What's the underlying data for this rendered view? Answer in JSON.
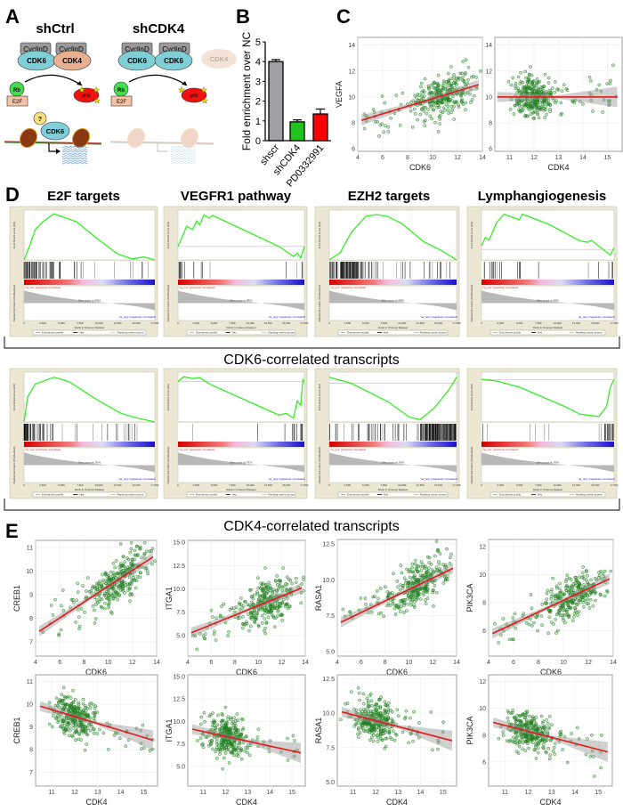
{
  "panel_labels": {
    "A": "A",
    "B": "B",
    "C": "C",
    "D": "D",
    "E": "E"
  },
  "diagram_a": {
    "left_title": "shCtrl",
    "right_title": "shCDK4",
    "cyclin": "CyclinD",
    "cdk6": "CDK6",
    "cdk4": "CDK4",
    "rb": "Rb",
    "prb": "pRb",
    "e2f": "E2F",
    "unknown": "?"
  },
  "gsea_titles": [
    "E2F targets",
    "VEGFR1 pathway",
    "EZH2 targets",
    "Lymphangiogenesis"
  ],
  "section_titles": {
    "cdk6": "CDK6-correlated transcripts",
    "cdk4": "CDK4-correlated transcripts"
  },
  "gsea_common": {
    "es_label": "Enrichment score (ES)",
    "metric_label": "Ranked list metric (PreRanked)",
    "xlabel": "Rank in Ordered Dataset",
    "pos_label": "'na_pos' (positively correlated)",
    "neg_label": "'na_neg' (negatively correlated)",
    "legend": [
      "Enrichment profile",
      "Hits",
      "Ranking metric scores"
    ],
    "xticks": [
      0,
      2500,
      5000,
      7500,
      10000,
      12500,
      15000,
      17500
    ],
    "colors": {
      "profile": "#33ee22",
      "hits": "#000000",
      "pos": "#e8141e",
      "neg": "#1a10c8"
    }
  },
  "chart_data": [
    {
      "id": "B",
      "type": "bar",
      "categories": [
        "shscr",
        "shCDK4",
        "PD0332991"
      ],
      "values": [
        4.0,
        0.95,
        1.35
      ],
      "errors": [
        0.1,
        0.1,
        0.25
      ],
      "colors": [
        "#a0a0a4",
        "#1fc41f",
        "#ff0000"
      ],
      "ylabel": "Fold enrichment over NC",
      "ylim": [
        0,
        5
      ],
      "yticks": [
        0,
        1,
        2,
        3,
        4,
        5
      ]
    },
    {
      "id": "C1",
      "type": "scatter",
      "xlabel": "CDK6",
      "ylabel": "VEGFA",
      "xlim": [
        4,
        14
      ],
      "ylim": [
        5.8,
        14.6
      ],
      "xticks": [
        4,
        6,
        8,
        10,
        12,
        14
      ],
      "yticks": [
        6,
        8,
        10,
        12,
        14
      ],
      "fit": [
        [
          4.3,
          8.2
        ],
        [
          13.7,
          10.95
        ]
      ],
      "grid": true
    },
    {
      "id": "C2",
      "type": "scatter",
      "xlabel": "CDK4",
      "ylabel": "",
      "xlim": [
        10.4,
        15.6
      ],
      "ylim": [
        5.8,
        14.6
      ],
      "xticks": [
        11,
        12,
        13,
        14,
        15
      ],
      "yticks": [
        6,
        8,
        10,
        12,
        14
      ],
      "fit": [
        [
          10.5,
          10.0
        ],
        [
          15.4,
          10.0
        ]
      ],
      "grid": true
    },
    {
      "id": "E1",
      "type": "scatter",
      "xlabel": "CDK6",
      "ylabel": "CREB1",
      "xlim": [
        4,
        14
      ],
      "ylim": [
        6.4,
        11.3
      ],
      "xticks": [
        4,
        6,
        8,
        10,
        12,
        14
      ],
      "yticks": [
        7,
        8,
        9,
        10,
        11
      ],
      "fit": [
        [
          4.3,
          7.45
        ],
        [
          13.7,
          10.6
        ]
      ],
      "grid": true
    },
    {
      "id": "E2",
      "type": "scatter",
      "xlabel": "CDK6",
      "ylabel": "ITGA1",
      "xlim": [
        4,
        14
      ],
      "ylim": [
        2.8,
        15.2
      ],
      "xticks": [
        4,
        6,
        8,
        10,
        12,
        14
      ],
      "yticks": [
        "5.0",
        "7.5",
        "10.0",
        "12.5",
        "15.0"
      ],
      "fit": [
        [
          4.3,
          5.3
        ],
        [
          13.7,
          10.1
        ]
      ],
      "grid": true
    },
    {
      "id": "E3",
      "type": "scatter",
      "xlabel": "CDK6",
      "ylabel": "RASA1",
      "xlim": [
        4,
        14
      ],
      "ylim": [
        4.7,
        12.8
      ],
      "xticks": [
        4,
        6,
        8,
        10,
        12,
        14
      ],
      "yticks": [
        "5.0",
        "7.5",
        "10.0",
        "12.5"
      ],
      "fit": [
        [
          4.3,
          7.05
        ],
        [
          13.7,
          10.8
        ]
      ],
      "grid": true
    },
    {
      "id": "E4",
      "type": "scatter",
      "xlabel": "CDK6",
      "ylabel": "PIK3CA",
      "xlim": [
        4,
        14
      ],
      "ylim": [
        4.2,
        12.5
      ],
      "xticks": [
        4,
        6,
        8,
        10,
        12,
        14
      ],
      "yticks": [
        6,
        8,
        10,
        12
      ],
      "fit": [
        [
          4.3,
          5.8
        ],
        [
          13.7,
          9.7
        ]
      ],
      "grid": true
    },
    {
      "id": "E5",
      "type": "scatter",
      "xlabel": "CDK4",
      "ylabel": "CREB1",
      "xlim": [
        10.3,
        15.6
      ],
      "ylim": [
        6.4,
        11.3
      ],
      "xticks": [
        11,
        12,
        13,
        14,
        15
      ],
      "yticks": [
        7,
        8,
        9,
        10,
        11
      ],
      "fit": [
        [
          10.5,
          9.92
        ],
        [
          15.4,
          8.42
        ]
      ],
      "grid": true
    },
    {
      "id": "E6",
      "type": "scatter",
      "xlabel": "CDK4",
      "ylabel": "ITGA1",
      "xlim": [
        10.3,
        15.6
      ],
      "ylim": [
        2.8,
        15.2
      ],
      "xticks": [
        11,
        12,
        13,
        14,
        15
      ],
      "yticks": [
        "5.0",
        "7.5",
        "10.0",
        "12.5",
        "15.0"
      ],
      "fit": [
        [
          10.5,
          9.15
        ],
        [
          15.4,
          6.5
        ]
      ],
      "grid": true
    },
    {
      "id": "E7",
      "type": "scatter",
      "xlabel": "CDK4",
      "ylabel": "RASA1",
      "xlim": [
        10.3,
        15.6
      ],
      "ylim": [
        4.7,
        12.8
      ],
      "xticks": [
        11,
        12,
        13,
        14,
        15
      ],
      "yticks": [
        "5.0",
        "7.5",
        "10.0",
        "12.5"
      ],
      "fit": [
        [
          10.5,
          10.1
        ],
        [
          15.4,
          8.0
        ]
      ],
      "grid": true
    },
    {
      "id": "E8",
      "type": "scatter",
      "xlabel": "CDK4",
      "ylabel": "PIK3CA",
      "xlim": [
        10.3,
        15.6
      ],
      "ylim": [
        4.2,
        12.5
      ],
      "xticks": [
        11,
        12,
        13,
        14,
        15
      ],
      "yticks": [
        6,
        8,
        10,
        12
      ],
      "fit": [
        [
          10.5,
          8.95
        ],
        [
          15.4,
          6.75
        ]
      ],
      "grid": true
    },
    {
      "id": "D1",
      "type": "line",
      "ylim": [
        0,
        0.47
      ],
      "es": [
        [
          0,
          0
        ],
        [
          800,
          0.15
        ],
        [
          1500,
          0.3
        ],
        [
          2500,
          0.38
        ],
        [
          4000,
          0.46
        ],
        [
          5500,
          0.42
        ],
        [
          7000,
          0.38
        ],
        [
          10000,
          0.2
        ],
        [
          12500,
          0.06
        ],
        [
          14500,
          0.01
        ],
        [
          16000,
          0.03
        ],
        [
          17500,
          0
        ]
      ],
      "hits": 80,
      "zero_cross": "Zero cross at 8862"
    },
    {
      "id": "D2",
      "type": "line",
      "ylim": [
        -0.2,
        0.5
      ],
      "es": [
        [
          0,
          0
        ],
        [
          600,
          0.15
        ],
        [
          1200,
          0.3
        ],
        [
          2000,
          0.25
        ],
        [
          2600,
          0.38
        ],
        [
          3000,
          0.32
        ],
        [
          3600,
          0.47
        ],
        [
          4300,
          0.42
        ],
        [
          4800,
          0.46
        ],
        [
          9000,
          0.25
        ],
        [
          14000,
          0.0
        ],
        [
          16000,
          -0.15
        ],
        [
          16500,
          -0.1
        ],
        [
          17000,
          -0.17
        ],
        [
          17500,
          0
        ]
      ],
      "hits": 20,
      "zero_cross": "Zero cross at 8862"
    },
    {
      "id": "D3",
      "type": "line",
      "ylim": [
        0,
        0.52
      ],
      "es": [
        [
          0,
          0
        ],
        [
          1500,
          0.08
        ],
        [
          3000,
          0.3
        ],
        [
          5000,
          0.48
        ],
        [
          6500,
          0.5
        ],
        [
          8000,
          0.48
        ],
        [
          10000,
          0.4
        ],
        [
          13000,
          0.2
        ],
        [
          15500,
          0.1
        ],
        [
          17500,
          0
        ]
      ],
      "hits": 150,
      "zero_cross": "Zero cross at 8862"
    },
    {
      "id": "D4",
      "type": "line",
      "ylim": [
        -0.15,
        0.52
      ],
      "es": [
        [
          0,
          0.05
        ],
        [
          500,
          0.17
        ],
        [
          1000,
          0.13
        ],
        [
          2000,
          0.38
        ],
        [
          3000,
          0.5
        ],
        [
          5000,
          0.42
        ],
        [
          5400,
          0.5
        ],
        [
          9000,
          0.35
        ],
        [
          13000,
          0.12
        ],
        [
          14000,
          0.1
        ],
        [
          14500,
          0.13
        ],
        [
          17000,
          -0.08
        ],
        [
          17500,
          0.02
        ]
      ],
      "hits": 25,
      "zero_cross": "Zero cross at 8862"
    },
    {
      "id": "D5",
      "type": "line",
      "ylim": [
        0,
        0.56
      ],
      "es": [
        [
          0,
          0
        ],
        [
          500,
          0.3
        ],
        [
          1500,
          0.45
        ],
        [
          4000,
          0.53
        ],
        [
          6000,
          0.48
        ],
        [
          10000,
          0.25
        ],
        [
          13000,
          0.1
        ],
        [
          15000,
          0.05
        ],
        [
          17500,
          0
        ]
      ],
      "hits": 90,
      "zero_cross": "Zero cross at 7976"
    },
    {
      "id": "D6",
      "type": "line",
      "ylim": [
        -0.42,
        0.07
      ],
      "es": [
        [
          0,
          0
        ],
        [
          800,
          0.05
        ],
        [
          2000,
          0.03
        ],
        [
          3000,
          0.04
        ],
        [
          4500,
          -0.03
        ],
        [
          14000,
          -0.35
        ],
        [
          15000,
          -0.33
        ],
        [
          16000,
          -0.38
        ],
        [
          16500,
          -0.2
        ],
        [
          17000,
          -0.25
        ],
        [
          17300,
          0.02
        ],
        [
          17500,
          0
        ]
      ],
      "hits": 18,
      "zero_cross": "Zero cross at 7976"
    },
    {
      "id": "D7",
      "type": "line",
      "ylim": [
        -0.32,
        0.07
      ],
      "es": [
        [
          0,
          0.05
        ],
        [
          3000,
          0.0
        ],
        [
          8000,
          -0.15
        ],
        [
          11000,
          -0.28
        ],
        [
          12500,
          -0.3
        ],
        [
          14500,
          -0.2
        ],
        [
          16500,
          -0.05
        ],
        [
          17500,
          0.05
        ]
      ],
      "hits": 200,
      "zero_cross": "Zero cross at 7976"
    },
    {
      "id": "D8",
      "type": "line",
      "ylim": [
        -0.55,
        0.06
      ],
      "es": [
        [
          0,
          0
        ],
        [
          2000,
          -0.02
        ],
        [
          5000,
          -0.1
        ],
        [
          11000,
          -0.35
        ],
        [
          13000,
          -0.45
        ],
        [
          15500,
          -0.48
        ],
        [
          16500,
          -0.35
        ],
        [
          17000,
          -0.1
        ],
        [
          17500,
          0
        ]
      ],
      "hits": 28,
      "zero_cross": "Zero cross at 7976"
    }
  ]
}
